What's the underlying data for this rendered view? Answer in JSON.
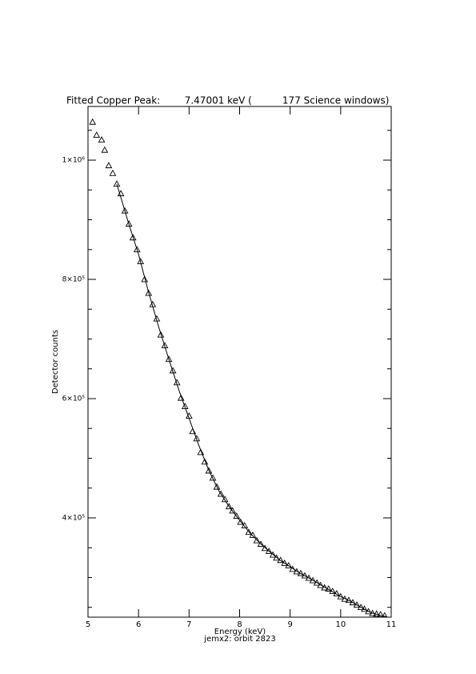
{
  "chart_data": {
    "type": "scatter",
    "title": "Fitted Copper Peak:        7.47001 keV (          177 Science windows)",
    "x_label": "Energy (keV)",
    "subtitle": "jemx2: orbit 2823",
    "y_label": "Detector counts",
    "xlim": [
      5,
      11
    ],
    "xticks": [
      5,
      6,
      7,
      8,
      9,
      10,
      11
    ],
    "ylim": [
      233500,
      1090000
    ],
    "yticks": [
      {
        "value": 400000,
        "label": "4×10⁵"
      },
      {
        "value": 600000,
        "label": "6×10⁵"
      },
      {
        "value": 800000,
        "label": "8×10⁵"
      },
      {
        "value": 1000000,
        "label": "1×10⁶"
      }
    ],
    "yminorticks": [
      250000,
      300000,
      350000,
      450000,
      500000,
      550000,
      650000,
      700000,
      750000,
      850000,
      900000,
      950000,
      1050000
    ],
    "color": "#000000",
    "series": [
      {
        "marker": "triangle",
        "x": [
          5.09,
          5.17,
          5.27,
          5.33,
          5.41,
          5.49,
          5.57,
          5.65,
          5.73,
          5.81,
          5.89,
          5.97,
          6.04,
          6.12,
          6.2,
          6.28,
          6.36,
          6.44,
          6.52,
          6.6,
          6.68,
          6.76,
          6.84,
          6.92,
          7.0,
          7.07,
          7.15,
          7.23,
          7.31,
          7.39,
          7.47,
          7.55,
          7.63,
          7.71,
          7.79,
          7.86,
          7.94,
          8.02,
          8.1,
          8.18,
          8.26,
          8.34,
          8.42,
          8.5,
          8.58,
          8.66,
          8.73,
          8.81,
          8.89,
          8.97,
          9.05,
          9.13,
          9.21,
          9.29,
          9.37,
          9.45,
          9.53,
          9.6,
          9.68,
          9.76,
          9.84,
          9.92,
          10.0,
          10.08,
          10.16,
          10.24,
          10.32,
          10.4,
          10.47,
          10.55,
          10.63,
          10.71,
          10.79,
          10.87
        ],
        "values": [
          1064000,
          1042000,
          1034000,
          1017000,
          991000,
          978000,
          960000,
          944000,
          915000,
          893000,
          870000,
          850000,
          830000,
          800000,
          777000,
          758000,
          734000,
          707000,
          689000,
          666000,
          647000,
          627000,
          601000,
          587000,
          571000,
          545000,
          533000,
          510000,
          494000,
          479000,
          467000,
          452000,
          440000,
          431000,
          419000,
          412000,
          403000,
          393000,
          387000,
          376000,
          371000,
          362000,
          356000,
          349000,
          344000,
          338000,
          333000,
          329000,
          324000,
          320000,
          314000,
          310000,
          307000,
          303000,
          299000,
          295000,
          291000,
          287000,
          283000,
          281000,
          277000,
          273000,
          268000,
          264000,
          262000,
          258000,
          254000,
          250000,
          247000,
          243000,
          240000,
          239000,
          238000,
          236000
        ]
      },
      {
        "marker": "line",
        "x": [
          5.57,
          5.8,
          6.0,
          6.2,
          6.4,
          6.6,
          6.8,
          7.0,
          7.2,
          7.4,
          7.6,
          7.8,
          8.0,
          8.2,
          8.4,
          8.6,
          8.8,
          9.0,
          9.2,
          9.4,
          9.6,
          9.8,
          10.0,
          10.2,
          10.4,
          10.6,
          10.8,
          10.92
        ],
        "values": [
          960000,
          895000,
          842000,
          778000,
          720000,
          666000,
          614000,
          567000,
          520000,
          478000,
          444000,
          418000,
          396000,
          375000,
          358000,
          343000,
          329000,
          318000,
          307000,
          298000,
          288000,
          278000,
          268000,
          260000,
          250000,
          241000,
          236000,
          234000
        ]
      }
    ]
  }
}
